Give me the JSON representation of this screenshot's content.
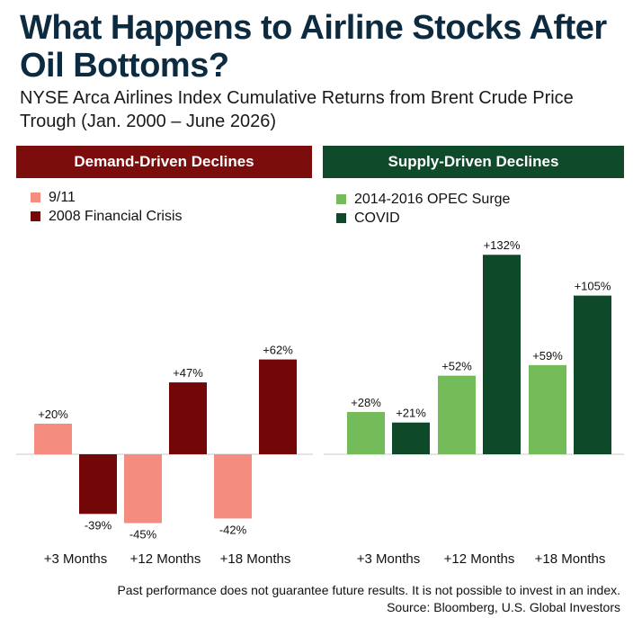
{
  "title": "What Happens to Airline Stocks After Oil Bottoms?",
  "subtitle": "NYSE Arca Airlines Index Cumulative Returns from Brent Crude Price Trough (Jan. 2000 – June 2026)",
  "footnote": "Past performance does not guarantee future results. It is not possible to invest in an index.",
  "source": "Source: Bloomberg, U.S. Global Investors",
  "colors": {
    "demand_header": "#7b0d0d",
    "supply_header": "#0f4a2a",
    "nine_eleven": "#f58c80",
    "financial_crisis": "#730606",
    "opec": "#74bc5a",
    "covid": "#0e4a2a"
  },
  "chart_data": [
    {
      "type": "bar",
      "panel": "Demand-Driven Declines",
      "categories": [
        "+3 Months",
        "+12 Months",
        "+18 Months"
      ],
      "series": [
        {
          "name": "9/11",
          "color": "#f58c80",
          "values": [
            20,
            -45,
            -42
          ],
          "labels": [
            "+20%",
            "-45%",
            "-42%"
          ]
        },
        {
          "name": "2008 Financial Crisis",
          "color": "#730606",
          "values": [
            -39,
            47,
            62
          ],
          "labels": [
            "-39%",
            "+47%",
            "+62%"
          ]
        }
      ],
      "legend_position": "top-left",
      "grid": false
    },
    {
      "type": "bar",
      "panel": "Supply-Driven Declines",
      "categories": [
        "+3 Months",
        "+12 Months",
        "+18 Months"
      ],
      "series": [
        {
          "name": "2014-2016 OPEC Surge",
          "color": "#74bc5a",
          "values": [
            28,
            52,
            59
          ],
          "labels": [
            "+28%",
            "+52%",
            "+59%"
          ]
        },
        {
          "name": "COVID",
          "color": "#0e4a2a",
          "values": [
            21,
            132,
            105
          ],
          "labels": [
            "+21%",
            "+132%",
            "+105%"
          ]
        }
      ],
      "legend_position": "top-left",
      "grid": false
    }
  ]
}
